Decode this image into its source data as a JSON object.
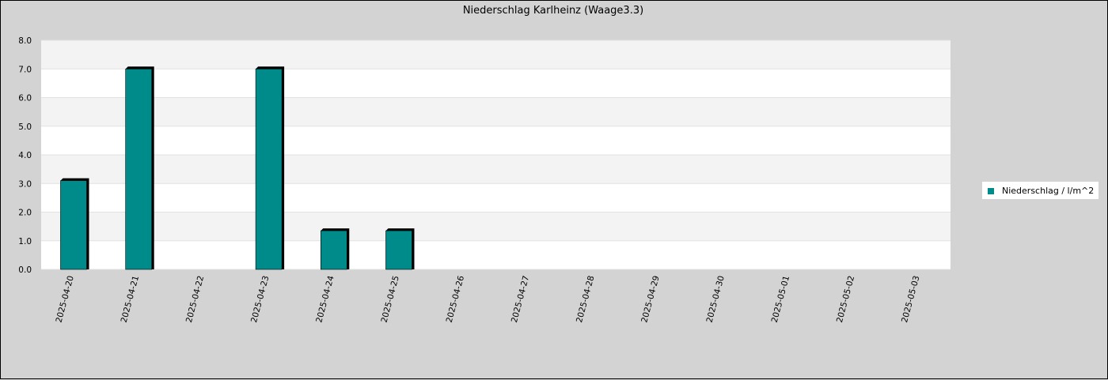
{
  "chart_data": {
    "type": "bar",
    "title": "Niederschlag Karlheinz (Waage3.3)",
    "xlabel": "",
    "ylabel": "",
    "categories": [
      "2025-04-20",
      "2025-04-21",
      "2025-04-22",
      "2025-04-23",
      "2025-04-24",
      "2025-04-25",
      "2025-04-26",
      "2025-04-27",
      "2025-04-28",
      "2025-04-29",
      "2025-04-30",
      "2025-05-01",
      "2025-05-02",
      "2025-05-03"
    ],
    "series": [
      {
        "name": "Niederschlag / l/m^2",
        "color": "#008b8b",
        "values": [
          3.1,
          7.0,
          0,
          7.0,
          1.35,
          1.35,
          0,
          0,
          0,
          0,
          0,
          0,
          0,
          0
        ]
      }
    ],
    "ylim": [
      0,
      8
    ],
    "yticks": [
      "0.0",
      "1.0",
      "2.0",
      "3.0",
      "4.0",
      "5.0",
      "6.0",
      "7.0",
      "8.0"
    ],
    "grid": "horizontal alternating bands",
    "legend_position": "right"
  }
}
